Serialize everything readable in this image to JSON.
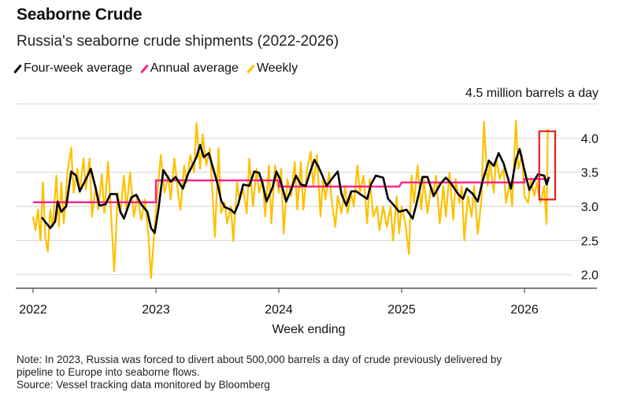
{
  "header": {
    "title": "Seaborne Crude",
    "subtitle": "Russia's seaborne crude shipments (2022-2026)"
  },
  "legend": [
    {
      "label": "Four-week average",
      "color": "#000000"
    },
    {
      "label": "Annual average",
      "color": "#ff1e8c"
    },
    {
      "label": "Weekly",
      "color": "#ffc000"
    }
  ],
  "footer": {
    "note_line1": "Note: In 2023, Russia was forced to divert about 500,000 barrels a day of crude previously delivered by",
    "note_line2": "pipeline to Europe into seaborne flows.",
    "source": "Source: Vessel tracking data monitored by Bloomberg"
  },
  "chart_data": {
    "type": "line",
    "title": "Seaborne Crude",
    "subtitle": "Russia's seaborne crude shipments (2022-2026)",
    "xlabel": "Week ending",
    "ylabel": "4.5 million barrels a day",
    "xlim": [
      2021.85,
      2026.6
    ],
    "ylim": [
      1.8,
      4.5
    ],
    "x_ticks": [
      2022,
      2023,
      2024,
      2025,
      2026
    ],
    "x_tick_labels": [
      "2022",
      "2023",
      "2024",
      "2025",
      "2026"
    ],
    "y_ticks": [
      2.0,
      2.5,
      3.0,
      3.5,
      4.0,
      4.5
    ],
    "y_tick_labels": [
      "2.0",
      "2.5",
      "3.0",
      "3.5",
      "4.0"
    ],
    "grid": true,
    "legend_position": "top-left",
    "series": [
      {
        "name": "Weekly",
        "color": "#ffc000",
        "points": [
          [
            2022.0,
            2.85
          ],
          [
            2022.02,
            2.65
          ],
          [
            2022.04,
            2.95
          ],
          [
            2022.06,
            2.5
          ],
          [
            2022.08,
            3.35
          ],
          [
            2022.1,
            2.55
          ],
          [
            2022.12,
            2.34
          ],
          [
            2022.14,
            2.95
          ],
          [
            2022.16,
            2.7
          ],
          [
            2022.19,
            3.45
          ],
          [
            2022.21,
            2.7
          ],
          [
            2022.23,
            3.35
          ],
          [
            2022.25,
            2.75
          ],
          [
            2022.28,
            3.5
          ],
          [
            2022.31,
            3.86
          ],
          [
            2022.33,
            3.2
          ],
          [
            2022.36,
            3.55
          ],
          [
            2022.38,
            3.2
          ],
          [
            2022.41,
            3.7
          ],
          [
            2022.43,
            3.25
          ],
          [
            2022.46,
            3.7
          ],
          [
            2022.48,
            2.85
          ],
          [
            2022.51,
            3.3
          ],
          [
            2022.53,
            2.95
          ],
          [
            2022.56,
            3.47
          ],
          [
            2022.58,
            2.9
          ],
          [
            2022.61,
            3.65
          ],
          [
            2022.63,
            3.05
          ],
          [
            2022.66,
            2.05
          ],
          [
            2022.69,
            3.2
          ],
          [
            2022.71,
            2.9
          ],
          [
            2022.74,
            3.45
          ],
          [
            2022.76,
            2.95
          ],
          [
            2022.79,
            3.5
          ],
          [
            2022.82,
            2.85
          ],
          [
            2022.85,
            3.15
          ],
          [
            2022.88,
            2.8
          ],
          [
            2022.91,
            3.1
          ],
          [
            2022.94,
            2.55
          ],
          [
            2022.96,
            1.95
          ],
          [
            2022.99,
            2.7
          ],
          [
            2023.02,
            3.35
          ],
          [
            2023.04,
            3.75
          ],
          [
            2023.07,
            3.2
          ],
          [
            2023.1,
            3.45
          ],
          [
            2023.12,
            3.1
          ],
          [
            2023.15,
            3.7
          ],
          [
            2023.18,
            3.2
          ],
          [
            2023.2,
            2.95
          ],
          [
            2023.23,
            3.6
          ],
          [
            2023.25,
            3.35
          ],
          [
            2023.28,
            3.75
          ],
          [
            2023.31,
            3.5
          ],
          [
            2023.33,
            4.22
          ],
          [
            2023.36,
            3.55
          ],
          [
            2023.38,
            4.05
          ],
          [
            2023.41,
            3.6
          ],
          [
            2023.44,
            3.85
          ],
          [
            2023.46,
            3.2
          ],
          [
            2023.48,
            2.55
          ],
          [
            2023.51,
            3.85
          ],
          [
            2023.53,
            2.9
          ],
          [
            2023.56,
            3.05
          ],
          [
            2023.58,
            2.75
          ],
          [
            2023.61,
            3.0
          ],
          [
            2023.63,
            2.49
          ],
          [
            2023.66,
            3.35
          ],
          [
            2023.68,
            3.1
          ],
          [
            2023.71,
            3.25
          ],
          [
            2023.74,
            2.9
          ],
          [
            2023.76,
            3.7
          ],
          [
            2023.79,
            3.0
          ],
          [
            2023.82,
            3.55
          ],
          [
            2023.84,
            3.2
          ],
          [
            2023.87,
            3.4
          ],
          [
            2023.89,
            2.85
          ],
          [
            2023.92,
            3.6
          ],
          [
            2023.94,
            2.75
          ],
          [
            2023.97,
            3.6
          ],
          [
            2024.0,
            3.2
          ],
          [
            2024.02,
            3.55
          ],
          [
            2024.04,
            2.6
          ],
          [
            2024.07,
            3.4
          ],
          [
            2024.1,
            3.15
          ],
          [
            2024.13,
            3.65
          ],
          [
            2024.15,
            2.95
          ],
          [
            2024.18,
            3.65
          ],
          [
            2024.2,
            2.95
          ],
          [
            2024.23,
            3.55
          ],
          [
            2024.26,
            3.8
          ],
          [
            2024.28,
            3.3
          ],
          [
            2024.31,
            3.75
          ],
          [
            2024.34,
            2.85
          ],
          [
            2024.36,
            3.4
          ],
          [
            2024.38,
            3.1
          ],
          [
            2024.41,
            3.5
          ],
          [
            2024.43,
            3.1
          ],
          [
            2024.46,
            2.7
          ],
          [
            2024.48,
            3.15
          ],
          [
            2024.51,
            2.9
          ],
          [
            2024.54,
            3.3
          ],
          [
            2024.56,
            2.9
          ],
          [
            2024.59,
            3.2
          ],
          [
            2024.61,
            3.0
          ],
          [
            2024.64,
            3.6
          ],
          [
            2024.66,
            3.2
          ],
          [
            2024.69,
            3.45
          ],
          [
            2024.72,
            2.75
          ],
          [
            2024.74,
            3.4
          ],
          [
            2024.77,
            2.85
          ],
          [
            2024.8,
            3.0
          ],
          [
            2024.82,
            2.65
          ],
          [
            2024.85,
            3.0
          ],
          [
            2024.88,
            2.7
          ],
          [
            2024.91,
            3.0
          ],
          [
            2024.93,
            2.5
          ],
          [
            2024.96,
            3.15
          ],
          [
            2024.98,
            2.6
          ],
          [
            2025.0,
            3.0
          ],
          [
            2025.03,
            2.75
          ],
          [
            2025.06,
            2.3
          ],
          [
            2025.08,
            3.45
          ],
          [
            2025.1,
            3.05
          ],
          [
            2025.13,
            3.6
          ],
          [
            2025.16,
            2.95
          ],
          [
            2025.18,
            3.4
          ],
          [
            2025.21,
            2.9
          ],
          [
            2025.24,
            3.3
          ],
          [
            2025.26,
            3.2
          ],
          [
            2025.28,
            3.45
          ],
          [
            2025.31,
            2.75
          ],
          [
            2025.34,
            3.3
          ],
          [
            2025.36,
            2.85
          ],
          [
            2025.39,
            3.5
          ],
          [
            2025.42,
            2.8
          ],
          [
            2025.44,
            3.4
          ],
          [
            2025.47,
            3.05
          ],
          [
            2025.49,
            3.3
          ],
          [
            2025.51,
            2.5
          ],
          [
            2025.54,
            3.15
          ],
          [
            2025.57,
            2.85
          ],
          [
            2025.59,
            3.3
          ],
          [
            2025.62,
            2.6
          ],
          [
            2025.65,
            3.1
          ],
          [
            2025.67,
            4.24
          ],
          [
            2025.7,
            3.3
          ],
          [
            2025.72,
            3.65
          ],
          [
            2025.75,
            3.2
          ],
          [
            2025.77,
            3.7
          ],
          [
            2025.8,
            3.4
          ],
          [
            2025.83,
            3.55
          ],
          [
            2025.85,
            3.05
          ],
          [
            2025.88,
            3.35
          ],
          [
            2025.9,
            3.0
          ],
          [
            2025.93,
            4.26
          ],
          [
            2025.95,
            3.55
          ],
          [
            2025.98,
            3.75
          ],
          [
            2026.0,
            3.15
          ],
          [
            2026.03,
            3.05
          ],
          [
            2026.05,
            3.4
          ],
          [
            2026.08,
            3.15
          ],
          [
            2026.1,
            3.35
          ],
          [
            2026.13,
            3.05
          ],
          [
            2026.16,
            3.3
          ],
          [
            2026.18,
            2.74
          ],
          [
            2026.19,
            4.13
          ]
        ]
      },
      {
        "name": "Annual average",
        "color": "#ff1e8c",
        "steps": [
          [
            2022.0,
            2023.0,
            3.06
          ],
          [
            2023.0,
            2024.0,
            3.38
          ],
          [
            2024.0,
            2024.98,
            3.29
          ],
          [
            2025.0,
            2026.0,
            3.35
          ],
          [
            2026.0,
            2026.2,
            3.4
          ]
        ]
      },
      {
        "name": "Four-week average",
        "color": "#000000",
        "points": [
          [
            2022.07,
            2.84
          ],
          [
            2022.14,
            2.68
          ],
          [
            2022.18,
            2.78
          ],
          [
            2022.2,
            3.07
          ],
          [
            2022.23,
            2.92
          ],
          [
            2022.27,
            3.0
          ],
          [
            2022.31,
            3.51
          ],
          [
            2022.35,
            3.45
          ],
          [
            2022.38,
            3.22
          ],
          [
            2022.43,
            3.4
          ],
          [
            2022.47,
            3.55
          ],
          [
            2022.51,
            3.26
          ],
          [
            2022.54,
            3.01
          ],
          [
            2022.59,
            3.03
          ],
          [
            2022.63,
            3.18
          ],
          [
            2022.68,
            3.18
          ],
          [
            2022.71,
            2.92
          ],
          [
            2022.74,
            2.82
          ],
          [
            2022.8,
            3.13
          ],
          [
            2022.84,
            3.17
          ],
          [
            2022.88,
            3.03
          ],
          [
            2022.93,
            2.92
          ],
          [
            2022.96,
            2.68
          ],
          [
            2022.99,
            2.61
          ],
          [
            2023.02,
            2.95
          ],
          [
            2023.06,
            3.53
          ],
          [
            2023.12,
            3.36
          ],
          [
            2023.16,
            3.43
          ],
          [
            2023.22,
            3.26
          ],
          [
            2023.26,
            3.47
          ],
          [
            2023.3,
            3.61
          ],
          [
            2023.33,
            3.72
          ],
          [
            2023.36,
            3.9
          ],
          [
            2023.39,
            3.72
          ],
          [
            2023.43,
            3.78
          ],
          [
            2023.47,
            3.53
          ],
          [
            2023.5,
            3.34
          ],
          [
            2023.53,
            3.09
          ],
          [
            2023.56,
            2.99
          ],
          [
            2023.61,
            2.95
          ],
          [
            2023.64,
            2.9
          ],
          [
            2023.67,
            3.03
          ],
          [
            2023.71,
            3.32
          ],
          [
            2023.76,
            3.3
          ],
          [
            2023.8,
            3.51
          ],
          [
            2023.84,
            3.49
          ],
          [
            2023.87,
            3.32
          ],
          [
            2023.9,
            3.07
          ],
          [
            2023.95,
            3.28
          ],
          [
            2023.98,
            3.51
          ],
          [
            2024.01,
            3.4
          ],
          [
            2024.06,
            3.07
          ],
          [
            2024.1,
            3.24
          ],
          [
            2024.14,
            3.45
          ],
          [
            2024.18,
            3.32
          ],
          [
            2024.22,
            3.3
          ],
          [
            2024.26,
            3.53
          ],
          [
            2024.29,
            3.68
          ],
          [
            2024.32,
            3.59
          ],
          [
            2024.35,
            3.47
          ],
          [
            2024.39,
            3.3
          ],
          [
            2024.44,
            3.42
          ],
          [
            2024.48,
            3.51
          ],
          [
            2024.51,
            3.18
          ],
          [
            2024.55,
            3.01
          ],
          [
            2024.59,
            3.22
          ],
          [
            2024.63,
            3.22
          ],
          [
            2024.67,
            3.17
          ],
          [
            2024.72,
            3.11
          ],
          [
            2024.75,
            3.32
          ],
          [
            2024.79,
            3.45
          ],
          [
            2024.85,
            3.42
          ],
          [
            2024.89,
            3.11
          ],
          [
            2024.93,
            3.03
          ],
          [
            2024.98,
            2.92
          ],
          [
            2025.04,
            2.95
          ],
          [
            2025.09,
            2.82
          ],
          [
            2025.12,
            3.03
          ],
          [
            2025.17,
            3.43
          ],
          [
            2025.21,
            3.43
          ],
          [
            2025.26,
            3.15
          ],
          [
            2025.32,
            3.34
          ],
          [
            2025.36,
            3.42
          ],
          [
            2025.4,
            3.34
          ],
          [
            2025.46,
            3.18
          ],
          [
            2025.5,
            3.11
          ],
          [
            2025.53,
            3.26
          ],
          [
            2025.58,
            3.18
          ],
          [
            2025.62,
            3.07
          ],
          [
            2025.66,
            3.38
          ],
          [
            2025.71,
            3.67
          ],
          [
            2025.75,
            3.59
          ],
          [
            2025.79,
            3.78
          ],
          [
            2025.83,
            3.63
          ],
          [
            2025.89,
            3.26
          ],
          [
            2025.93,
            3.68
          ],
          [
            2025.96,
            3.84
          ],
          [
            2026.01,
            3.45
          ],
          [
            2026.04,
            3.24
          ],
          [
            2026.08,
            3.38
          ],
          [
            2026.11,
            3.47
          ],
          [
            2026.16,
            3.45
          ],
          [
            2026.18,
            3.32
          ],
          [
            2026.2,
            3.43
          ]
        ]
      }
    ],
    "highlight": {
      "x": [
        2026.12,
        2026.25
      ],
      "y": [
        3.1,
        4.1
      ],
      "color": "#e02020"
    }
  }
}
